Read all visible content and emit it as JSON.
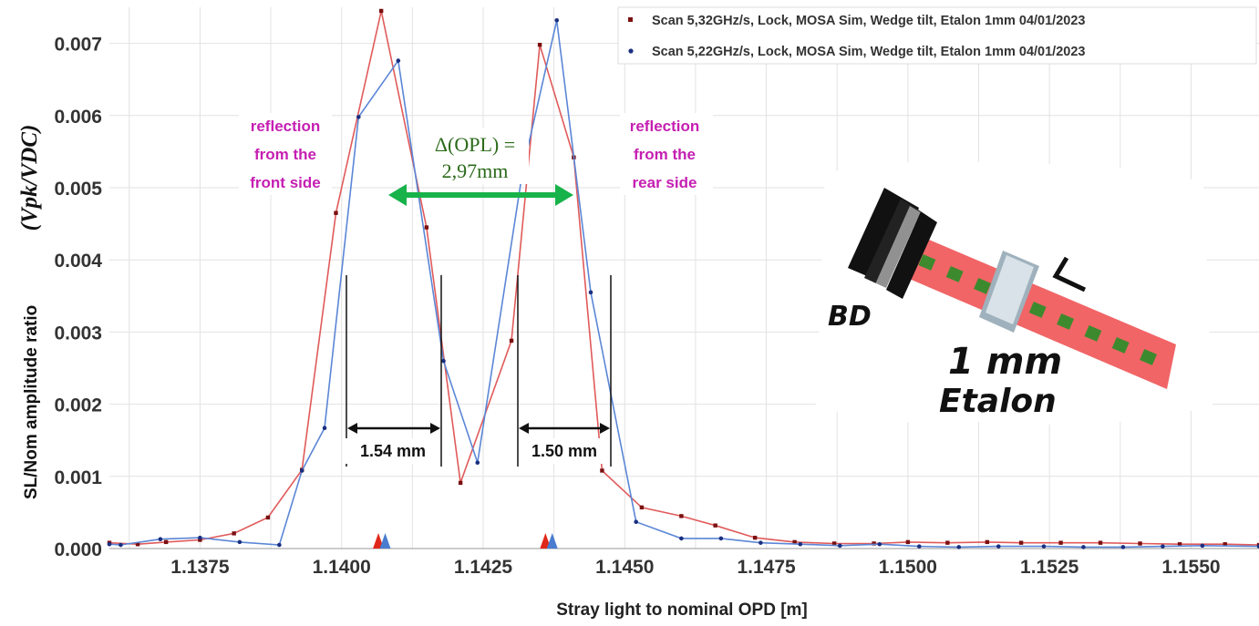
{
  "chart_data": {
    "type": "line",
    "xlabel": "Stray light to nominal OPD [m]",
    "ylabel": "SL/Nom amplitude ratio",
    "ylabel_math": "(Vpk/VDC)",
    "xlim": [
      1.1359,
      1.1562
    ],
    "ylim": [
      0,
      0.0075
    ],
    "xticks": [
      1.1375,
      1.14,
      1.1425,
      1.145,
      1.1475,
      1.15,
      1.1525,
      1.155
    ],
    "xtick_labels": [
      "1.1375",
      "1.1400",
      "1.1425",
      "1.1450",
      "1.1475",
      "1.1500",
      "1.1525",
      "1.1550"
    ],
    "yticks": [
      0,
      0.001,
      0.002,
      0.003,
      0.004,
      0.005,
      0.006,
      0.007
    ],
    "ytick_labels": [
      "0.000",
      "0.001",
      "0.002",
      "0.003",
      "0.004",
      "0.005",
      "0.006",
      "0.007"
    ],
    "grid": true,
    "legend_position": "top-right",
    "series": [
      {
        "name": "Scan 5,32GHz/s, Lock, MOSA Sim, Wedge tilt, Etalon 1mm 04/01/2023",
        "color": "#e05a5a",
        "marker_color": "#7a1010",
        "marker": "square",
        "x": [
          1.1359,
          1.1364,
          1.1369,
          1.1375,
          1.1381,
          1.1387,
          1.1393,
          1.1399,
          1.1407,
          1.1415,
          1.1421,
          1.143,
          1.1435,
          1.1441,
          1.1446,
          1.1453,
          1.146,
          1.1466,
          1.1473,
          1.148,
          1.1487,
          1.1494,
          1.15,
          1.1507,
          1.1514,
          1.152,
          1.1527,
          1.1534,
          1.1541,
          1.1548,
          1.1556,
          1.1562
        ],
        "y": [
          8e-05,
          6e-05,
          9e-05,
          0.00012,
          0.00021,
          0.00043,
          0.00109,
          0.00465,
          0.00745,
          0.00445,
          0.00091,
          0.00288,
          0.00698,
          0.00542,
          0.00108,
          0.00057,
          0.00045,
          0.00032,
          0.00015,
          9e-05,
          7e-05,
          7e-05,
          9e-05,
          8e-05,
          9e-05,
          8e-05,
          8e-05,
          8e-05,
          7e-05,
          6e-05,
          6e-05,
          5e-05
        ]
      },
      {
        "name": "Scan 5,22GHz/s, Lock, MOSA Sim, Wedge tilt, Etalon 1mm 04/01/2023",
        "color": "#5b86d6",
        "marker_color": "#1a2f80",
        "marker": "circle",
        "x": [
          1.1359,
          1.1361,
          1.1368,
          1.1375,
          1.1382,
          1.1389,
          1.1393,
          1.1397,
          1.1403,
          1.141,
          1.1418,
          1.1424,
          1.1432,
          1.1438,
          1.1444,
          1.1452,
          1.146,
          1.1467,
          1.1474,
          1.1481,
          1.1488,
          1.1495,
          1.1502,
          1.1509,
          1.1516,
          1.1524,
          1.1531,
          1.1538,
          1.1545,
          1.1552,
          1.1562
        ],
        "y": [
          6e-05,
          5e-05,
          0.00013,
          0.00015,
          9e-05,
          5e-05,
          0.00108,
          0.00167,
          0.00598,
          0.00676,
          0.0026,
          0.00119,
          0.00525,
          0.00732,
          0.00355,
          0.00037,
          0.00014,
          0.00014,
          8e-05,
          6e-05,
          4e-05,
          6e-05,
          3e-05,
          2e-05,
          3e-05,
          3e-05,
          2e-05,
          2e-05,
          3e-05,
          4e-05,
          3e-05
        ]
      }
    ],
    "annotations": {
      "front_reflection": [
        "reflection",
        "from the",
        "front side"
      ],
      "rear_reflection": [
        "reflection",
        "from the",
        "rear side"
      ],
      "delta_opl": [
        "Δ(OPL) =",
        "2,97mm"
      ],
      "fwhm_left": "1.54 mm",
      "fwhm_right": "1.50 mm",
      "triangle_markers_x": [
        1.14065,
        1.14077,
        1.1436,
        1.14372
      ],
      "triangle_colors": [
        "#e0281a",
        "#4a7cd0",
        "#e0281a",
        "#4a7cd0"
      ],
      "inset_labels": {
        "detector": "BD",
        "etalon": [
          "1 mm",
          "Etalon"
        ]
      }
    }
  }
}
